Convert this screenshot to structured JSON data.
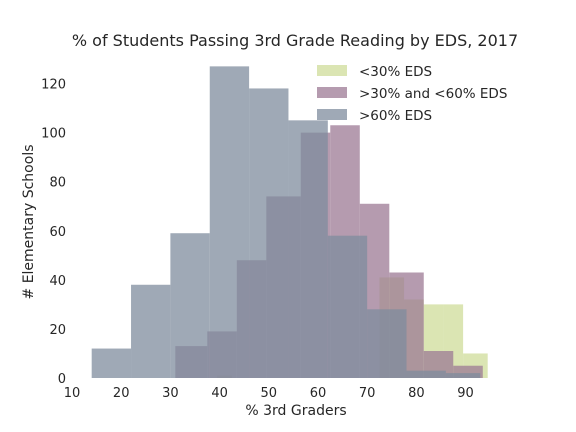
{
  "chart_data": {
    "type": "histogram",
    "title": "% of Students Passing 3rd Grade Reading by EDS, 2017",
    "xlabel": "% 3rd Graders",
    "ylabel": "# Elementary Schools",
    "xlim": [
      10,
      97
    ],
    "ylim": [
      0,
      130
    ],
    "xticks": [
      10,
      20,
      30,
      40,
      50,
      60,
      70,
      80,
      90
    ],
    "yticks": [
      0,
      20,
      40,
      60,
      80,
      100,
      120
    ],
    "grid": false,
    "legend_position": "top-right",
    "series": [
      {
        "name": "<30% EDS",
        "color": "#cfdc99",
        "opacity": 0.75,
        "bins": [
          {
            "x0": 39.5,
            "x1": 42.5,
            "count": 1
          },
          {
            "x0": 72.5,
            "x1": 77.5,
            "count": 41
          },
          {
            "x0": 77.5,
            "x1": 81.5,
            "count": 32
          },
          {
            "x0": 81.5,
            "x1": 85.5,
            "count": 30
          },
          {
            "x0": 85.5,
            "x1": 89.5,
            "count": 30
          },
          {
            "x0": 89.5,
            "x1": 94.5,
            "count": 10
          }
        ]
      },
      {
        "name": ">30% and <60% EDS",
        "color": "#9c7a94",
        "opacity": 0.75,
        "bins": [
          {
            "x0": 31,
            "x1": 37.5,
            "count": 13
          },
          {
            "x0": 37.5,
            "x1": 43.5,
            "count": 19
          },
          {
            "x0": 43.5,
            "x1": 49.5,
            "count": 48
          },
          {
            "x0": 49.5,
            "x1": 56.5,
            "count": 74
          },
          {
            "x0": 56.5,
            "x1": 62.5,
            "count": 100
          },
          {
            "x0": 62.5,
            "x1": 68.5,
            "count": 103
          },
          {
            "x0": 68.5,
            "x1": 74.5,
            "count": 71
          },
          {
            "x0": 74.5,
            "x1": 81.5,
            "count": 43
          },
          {
            "x0": 81.5,
            "x1": 87.5,
            "count": 11
          },
          {
            "x0": 87.5,
            "x1": 93.5,
            "count": 5
          }
        ]
      },
      {
        "name": ">60% EDS",
        "color": "#7f8c9e",
        "opacity": 0.75,
        "bins": [
          {
            "x0": 14,
            "x1": 22,
            "count": 12
          },
          {
            "x0": 22,
            "x1": 30,
            "count": 38
          },
          {
            "x0": 30,
            "x1": 38,
            "count": 59
          },
          {
            "x0": 38,
            "x1": 46,
            "count": 127
          },
          {
            "x0": 46,
            "x1": 54,
            "count": 118
          },
          {
            "x0": 54,
            "x1": 62,
            "count": 105
          },
          {
            "x0": 62,
            "x1": 70,
            "count": 58
          },
          {
            "x0": 70,
            "x1": 78,
            "count": 28
          },
          {
            "x0": 78,
            "x1": 86,
            "count": 3
          },
          {
            "x0": 86,
            "x1": 93,
            "count": 2
          }
        ]
      }
    ]
  }
}
